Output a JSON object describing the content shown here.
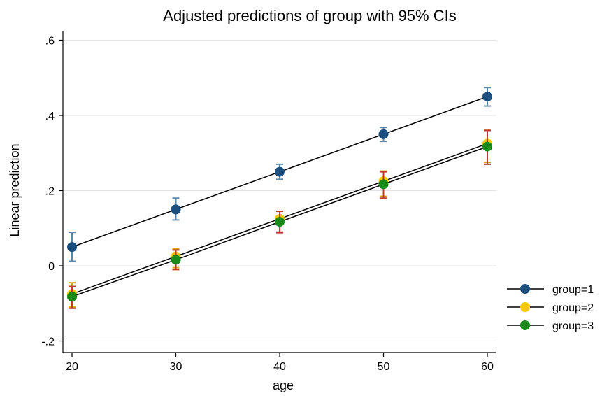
{
  "chart_data": {
    "type": "line",
    "title": "Adjusted predictions of group with 95% CIs",
    "xlabel": "age",
    "ylabel": "Linear prediction",
    "x": [
      20,
      30,
      40,
      50,
      60
    ],
    "xticks": [
      "20",
      "30",
      "40",
      "50",
      "60"
    ],
    "yticks": [
      {
        "value": -0.2,
        "label": "-.2"
      },
      {
        "value": 0,
        "label": "0"
      },
      {
        "value": 0.2,
        "label": ".2"
      },
      {
        "value": 0.4,
        "label": ".4"
      },
      {
        "value": 0.6,
        "label": ".6"
      }
    ],
    "xlim": [
      19,
      62
    ],
    "ylim": [
      -0.23,
      0.63
    ],
    "grid": true,
    "legend_position": "right",
    "series": [
      {
        "name": "group=1",
        "color": "#1a4f7e",
        "ci_color": "#5b87ad",
        "values": [
          0.05,
          0.15,
          0.25,
          0.35,
          0.45
        ],
        "ci_low": [
          0.012,
          0.122,
          0.23,
          0.331,
          0.425
        ],
        "ci_high": [
          0.089,
          0.18,
          0.27,
          0.368,
          0.474
        ]
      },
      {
        "name": "group=2",
        "color": "#f5c800",
        "ci_color": "#d9a21b",
        "values": [
          -0.075,
          0.025,
          0.125,
          0.225,
          0.325
        ],
        "ci_low": [
          -0.11,
          -0.005,
          0.09,
          0.185,
          0.275
        ],
        "ci_high": [
          -0.045,
          0.045,
          0.145,
          0.252,
          0.362
        ]
      },
      {
        "name": "group=3",
        "color": "#1a8a1a",
        "ci_color": "#c0392b",
        "values": [
          -0.082,
          0.016,
          0.117,
          0.217,
          0.317
        ],
        "ci_low": [
          -0.113,
          -0.01,
          0.088,
          0.18,
          0.27
        ],
        "ci_high": [
          -0.055,
          0.042,
          0.145,
          0.25,
          0.36
        ]
      }
    ]
  }
}
